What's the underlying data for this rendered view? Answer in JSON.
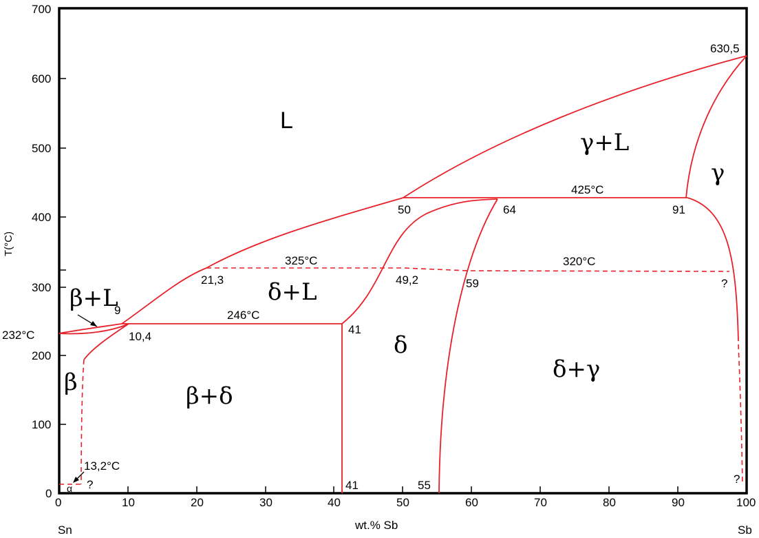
{
  "axes": {
    "xlabel": "wt.% Sb",
    "ylabel": "T(°C)",
    "x_ticks": [
      "0",
      "10",
      "20",
      "30",
      "40",
      "50",
      "60",
      "70",
      "80",
      "90",
      "100"
    ],
    "y_ticks": [
      "0",
      "100",
      "200",
      "300",
      "400",
      "500",
      "600",
      "700"
    ],
    "x_left_element": "Sn",
    "x_right_element": "Sb"
  },
  "phases": {
    "liquid": "L",
    "gamma_liquid": "γ+L",
    "gamma": "γ",
    "delta_liquid": "δ+L",
    "beta_liquid": "β+L",
    "delta": "δ",
    "delta_gamma": "δ+γ",
    "beta": "β",
    "beta_delta": "β+δ",
    "alpha": "α"
  },
  "annotations": {
    "sb_melting": "630,5",
    "sn_melting": "232°C",
    "t425": "425°C",
    "t325": "325°C",
    "t320": "320°C",
    "t246": "246°C",
    "t13": "13,2°C",
    "c50": "50",
    "c64": "64",
    "c91": "91",
    "c21": "21,3",
    "c49": "49,2",
    "c59": "59",
    "c9": "9",
    "c10": "10,4",
    "c41_top": "41",
    "c41_bottom": "41",
    "c55": "55",
    "q_right_mid": "?",
    "q_right_bottom": "?",
    "q_left_bottom": "?"
  },
  "colors": {
    "phase_lines": "#e8202a",
    "frame": "#000000"
  }
}
